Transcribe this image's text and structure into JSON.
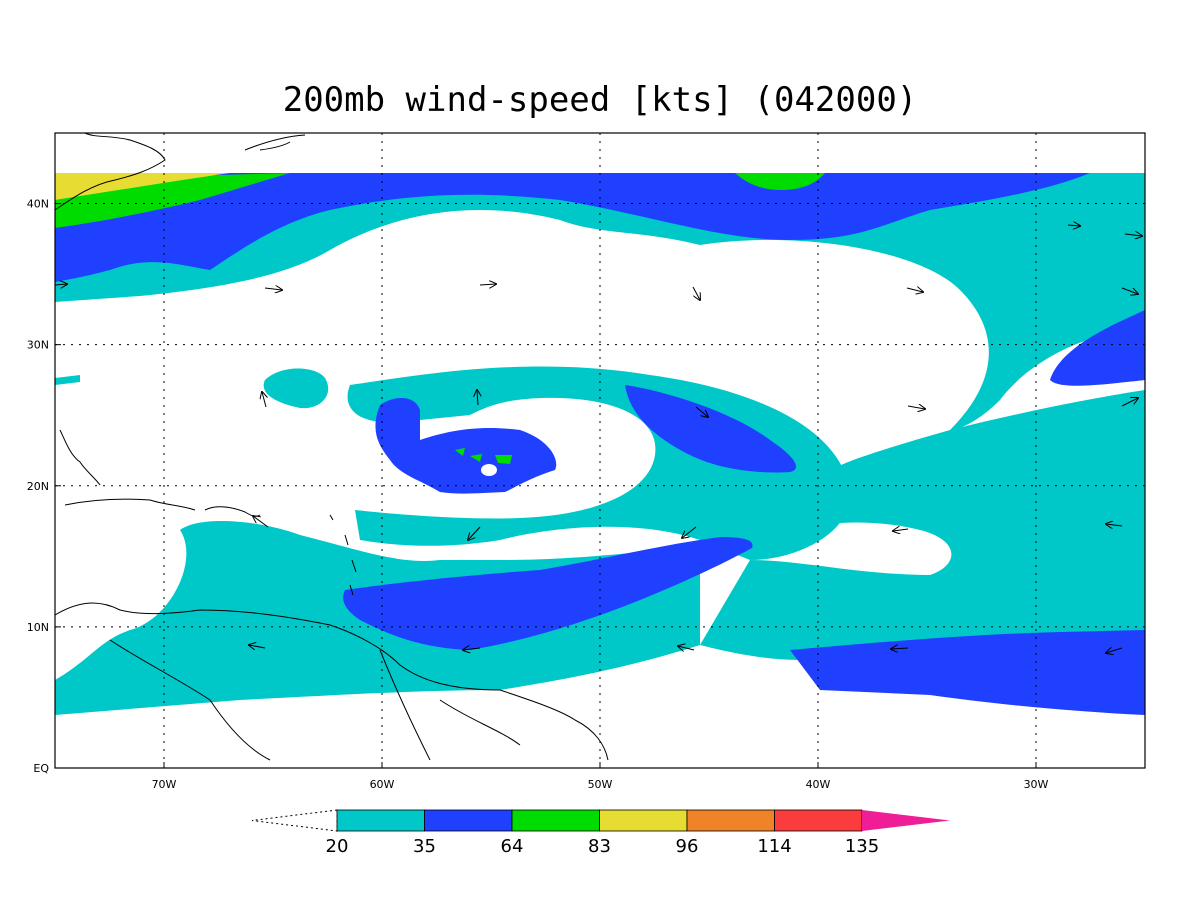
{
  "title": "200mb wind-speed [kts] (042000)",
  "colors": {
    "c20": "#00c8c8",
    "c35": "#2040ff",
    "c64": "#00dc00",
    "c83": "#e6dc32",
    "c96": "#f08228",
    "c114": "#fa3c3c",
    "c135": "#f01e96",
    "coast": "#000000",
    "grid": "#000000"
  },
  "axes": {
    "x_ticks": [
      {
        "lon": -70,
        "label": "70W"
      },
      {
        "lon": -60,
        "label": "60W"
      },
      {
        "lon": -50,
        "label": "50W"
      },
      {
        "lon": -40,
        "label": "40W"
      },
      {
        "lon": -30,
        "label": "30W"
      }
    ],
    "y_ticks": [
      {
        "lat": 0,
        "label": "EQ"
      },
      {
        "lat": 10,
        "label": "10N"
      },
      {
        "lat": 20,
        "label": "20N"
      },
      {
        "lat": 30,
        "label": "30N"
      },
      {
        "lat": 40,
        "label": "40N"
      }
    ],
    "lon_range": [
      -75,
      -25
    ],
    "lat_range": [
      0,
      45
    ]
  },
  "colorbar": {
    "levels": [
      "20",
      "35",
      "64",
      "83",
      "96",
      "114",
      "135"
    ],
    "fill_keys": [
      "c20",
      "c35",
      "c64",
      "c83",
      "c96",
      "c114"
    ],
    "upper_extend_key": "c135"
  },
  "icons": [
    "wind-vector-arrow-icon"
  ]
}
